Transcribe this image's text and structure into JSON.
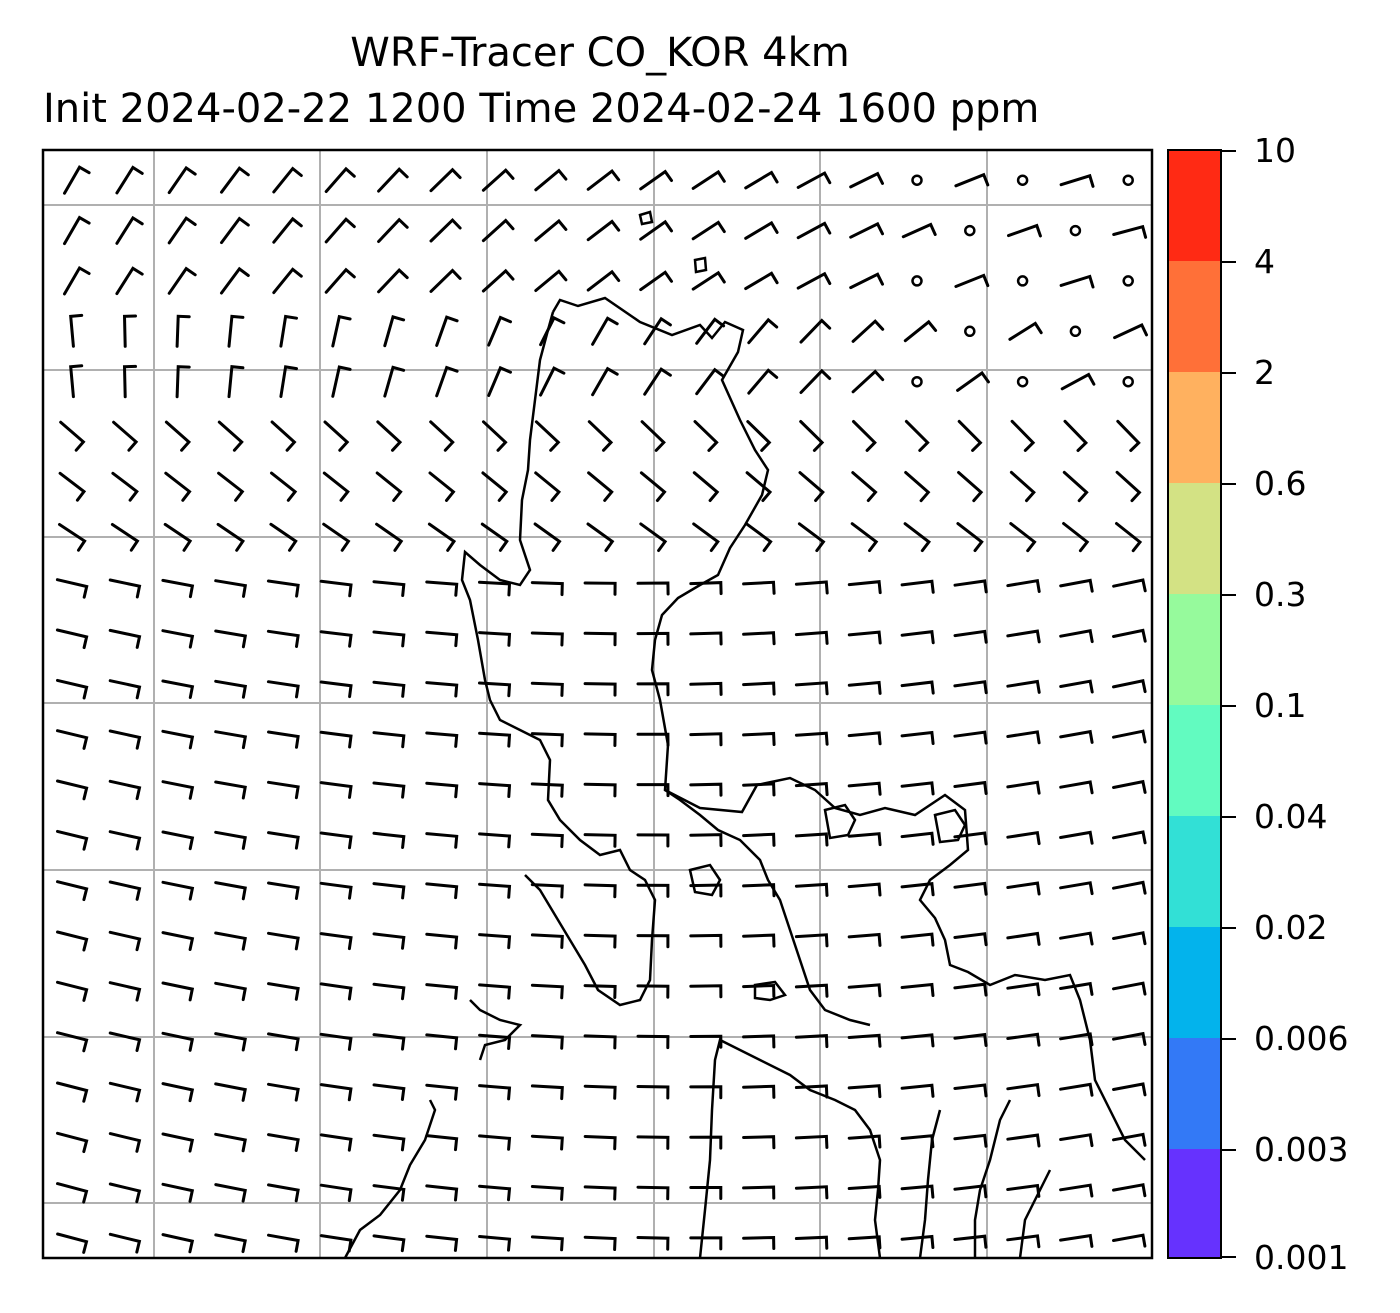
{
  "title": {
    "line1": "WRF-Tracer CO_KOR 4km",
    "line2": "Init 2024-02-22 1200 Time 2024-02-24 1600 ppm"
  },
  "colorbar": {
    "levels": [
      {
        "label": "10",
        "color": "#ff2a14"
      },
      {
        "label": "4",
        "color": "#ff7038"
      },
      {
        "label": "2",
        "color": "#ffb15f"
      },
      {
        "label": "0.6",
        "color": "#d3e284"
      },
      {
        "label": "0.3",
        "color": "#96fa9c"
      },
      {
        "label": "0.1",
        "color": "#62fbc0"
      },
      {
        "label": "0.04",
        "color": "#32e0d6"
      },
      {
        "label": "0.02",
        "color": "#03b3ec"
      },
      {
        "label": "0.006",
        "color": "#3379f6"
      },
      {
        "label": "0.003",
        "color": "#6632fe"
      },
      {
        "label": "0.001",
        "color": null
      }
    ]
  },
  "map": {
    "frame_color": "#000000",
    "gridline_color": "#b0b0b0",
    "coastline_color": "#000000",
    "wind_barb_color": "#000000"
  }
}
